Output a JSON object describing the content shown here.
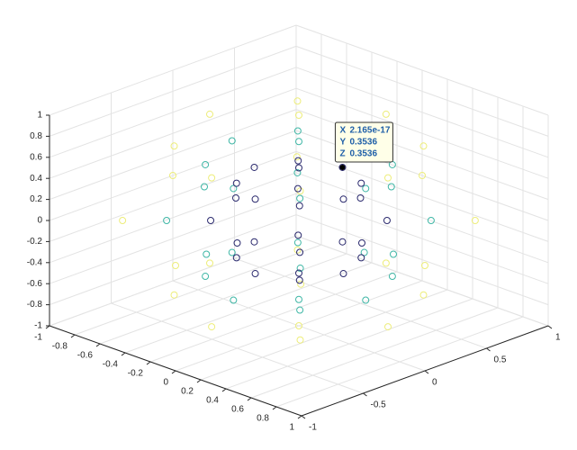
{
  "chart_data": {
    "type": "scatter3d",
    "xlim": [
      -1,
      1
    ],
    "ylim": [
      -1,
      1
    ],
    "zlim": [
      -1,
      1
    ],
    "xticks": [
      -1,
      -0.8,
      -0.6,
      -0.4,
      -0.2,
      0,
      0.2,
      0.4,
      0.6,
      0.8,
      1
    ],
    "yticks": [
      -1,
      -0.5,
      0,
      0.5,
      1
    ],
    "zticks": [
      -1,
      -0.8,
      -0.6,
      -0.4,
      -0.2,
      0,
      0.2,
      0.4,
      0.6,
      0.8,
      1
    ],
    "grid": true,
    "series": [
      {
        "color": "#eded7a",
        "x": [
          0.7071,
          0.5,
          0,
          -0.5,
          -0.7071,
          -0.5,
          0,
          0.5,
          1,
          0.7071,
          0,
          -0.7071,
          -1,
          -0.7071,
          0,
          0.7071,
          0.7071,
          0.5,
          0,
          -0.5,
          -0.7071,
          -0.5,
          0,
          0.5,
          0,
          0
        ],
        "y": [
          0,
          0.5,
          0.7071,
          0.5,
          0,
          -0.5,
          -0.7071,
          -0.5,
          0,
          0.7071,
          1,
          0.7071,
          0,
          -0.7071,
          -1,
          -0.7071,
          0,
          0.5,
          0.7071,
          0.5,
          0,
          -0.5,
          -0.7071,
          -0.5,
          0,
          0
        ],
        "z": [
          0.7071,
          0.7071,
          0.7071,
          0.7071,
          0.7071,
          0.7071,
          0.7071,
          0.7071,
          0,
          0,
          0,
          0,
          0,
          0,
          0,
          0,
          -0.7071,
          -0.7071,
          -0.7071,
          -0.7071,
          -0.7071,
          -0.7071,
          -0.7071,
          -0.7071,
          1,
          -1
        ]
      },
      {
        "color": "#3fb7a6",
        "x": [
          0.5303,
          0.375,
          0,
          -0.375,
          -0.5303,
          -0.375,
          0,
          0.375,
          0.75,
          0.5303,
          0,
          -0.5303,
          -0.75,
          -0.5303,
          0,
          0.5303,
          0.5303,
          0.375,
          0,
          -0.375,
          -0.5303,
          -0.375,
          0,
          0.375,
          0,
          0
        ],
        "y": [
          0,
          0.375,
          0.5303,
          0.375,
          0,
          -0.375,
          -0.5303,
          -0.375,
          0,
          0.5303,
          0.75,
          0.5303,
          0,
          -0.5303,
          -0.75,
          -0.5303,
          0,
          0.375,
          0.5303,
          0.375,
          0,
          -0.375,
          -0.5303,
          -0.375,
          0,
          0
        ],
        "z": [
          0.5303,
          0.5303,
          0.5303,
          0.5303,
          0.5303,
          0.5303,
          0.5303,
          0.5303,
          0,
          0,
          0,
          0,
          0,
          0,
          0,
          0,
          -0.5303,
          -0.5303,
          -0.5303,
          -0.5303,
          -0.5303,
          -0.5303,
          -0.5303,
          -0.5303,
          0.75,
          -0.75
        ]
      },
      {
        "color": "#2b2a6e",
        "x": [
          0.3536,
          0.25,
          0,
          -0.25,
          -0.3536,
          -0.25,
          0,
          0.25,
          0.5,
          0.3536,
          0,
          -0.3536,
          -0.5,
          -0.3536,
          0,
          0.3536,
          0.3536,
          0.25,
          0,
          -0.25,
          -0.3536,
          -0.25,
          0,
          0.25,
          0,
          0
        ],
        "y": [
          0,
          0.25,
          0.3536,
          0.25,
          0,
          -0.25,
          -0.3536,
          -0.25,
          0,
          0.3536,
          0.5,
          0.3536,
          0,
          -0.3536,
          -0.5,
          -0.3536,
          0,
          0.25,
          0.3536,
          0.25,
          0,
          -0.25,
          -0.3536,
          -0.25,
          0,
          0
        ],
        "z": [
          0.3536,
          0.3536,
          0.3536,
          0.3536,
          0.3536,
          0.3536,
          0.3536,
          0.3536,
          0,
          0,
          0,
          0,
          0,
          0,
          0,
          0,
          -0.3536,
          -0.3536,
          -0.3536,
          -0.3536,
          -0.3536,
          -0.3536,
          -0.3536,
          -0.3536,
          0.5,
          -0.5
        ]
      }
    ],
    "datatip": [
      {
        "label": "X",
        "value": 2.165e-17
      },
      {
        "label": "Y",
        "value": 0.3536
      },
      {
        "label": "Z",
        "value": 0.3536
      }
    ]
  }
}
